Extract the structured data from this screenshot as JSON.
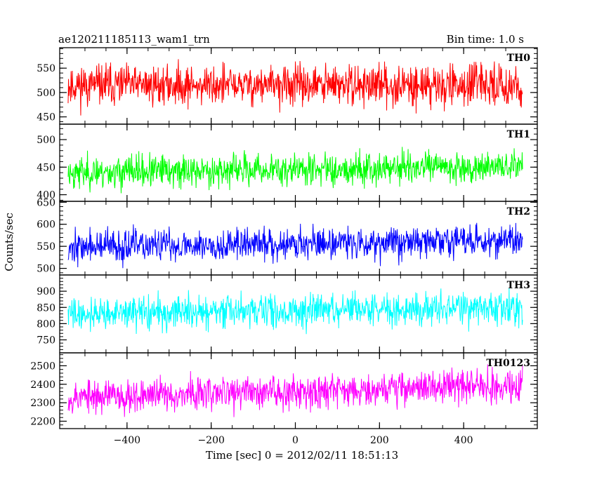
{
  "header": {
    "title": "ae120211185113_wam1_trn",
    "bin_time": "Bin time: 1.0 s"
  },
  "chart_data": {
    "type": "line",
    "xlabel": "Time [sec] 0 = 2012/02/11 18:51:13",
    "ylabel": "Counts/sec",
    "xlim": [
      -560,
      575
    ],
    "x_range": [
      -540,
      540
    ],
    "x_step": 1,
    "x_ticks": [
      -400,
      -200,
      0,
      200,
      400
    ],
    "x_tick_labels": [
      "−400",
      "−200",
      "0",
      "200",
      "400"
    ],
    "grid": false,
    "panels": [
      {
        "name": "TH0",
        "color": "#ff0000",
        "ylim": [
          435,
          592
        ],
        "yticks": [
          450,
          500,
          550
        ],
        "ytick_labels": [
          "450",
          "500",
          "550"
        ],
        "mean_start": 515,
        "mean_end": 515,
        "amplitude": 28,
        "seed": 11
      },
      {
        "name": "TH1",
        "color": "#00ff00",
        "ylim": [
          388,
          528
        ],
        "yticks": [
          400,
          450,
          500
        ],
        "ytick_labels": [
          "400",
          "450",
          "500"
        ],
        "mean_start": 440,
        "mean_end": 452,
        "amplitude": 20,
        "seed": 23
      },
      {
        "name": "TH2",
        "color": "#0000ff",
        "ylim": [
          485,
          652
        ],
        "yticks": [
          500,
          550,
          600,
          650
        ],
        "ytick_labels": [
          "500",
          "550",
          "600",
          "650"
        ],
        "mean_start": 548,
        "mean_end": 565,
        "amplitude": 25,
        "seed": 37
      },
      {
        "name": "TH3",
        "color": "#00ffff",
        "ylim": [
          710,
          950
        ],
        "yticks": [
          750,
          800,
          850,
          900
        ],
        "ytick_labels": [
          "750",
          "800",
          "850",
          "900"
        ],
        "mean_start": 830,
        "mean_end": 850,
        "amplitude": 34,
        "seed": 41
      },
      {
        "name": "TH0123",
        "color": "#ff00ff",
        "ylim": [
          2160,
          2570
        ],
        "yticks": [
          2200,
          2300,
          2400,
          2500
        ],
        "ytick_labels": [
          "2200",
          "2300",
          "2400",
          "2500"
        ],
        "mean_start": 2330,
        "mean_end": 2400,
        "amplitude": 62,
        "seed": 53
      }
    ]
  }
}
